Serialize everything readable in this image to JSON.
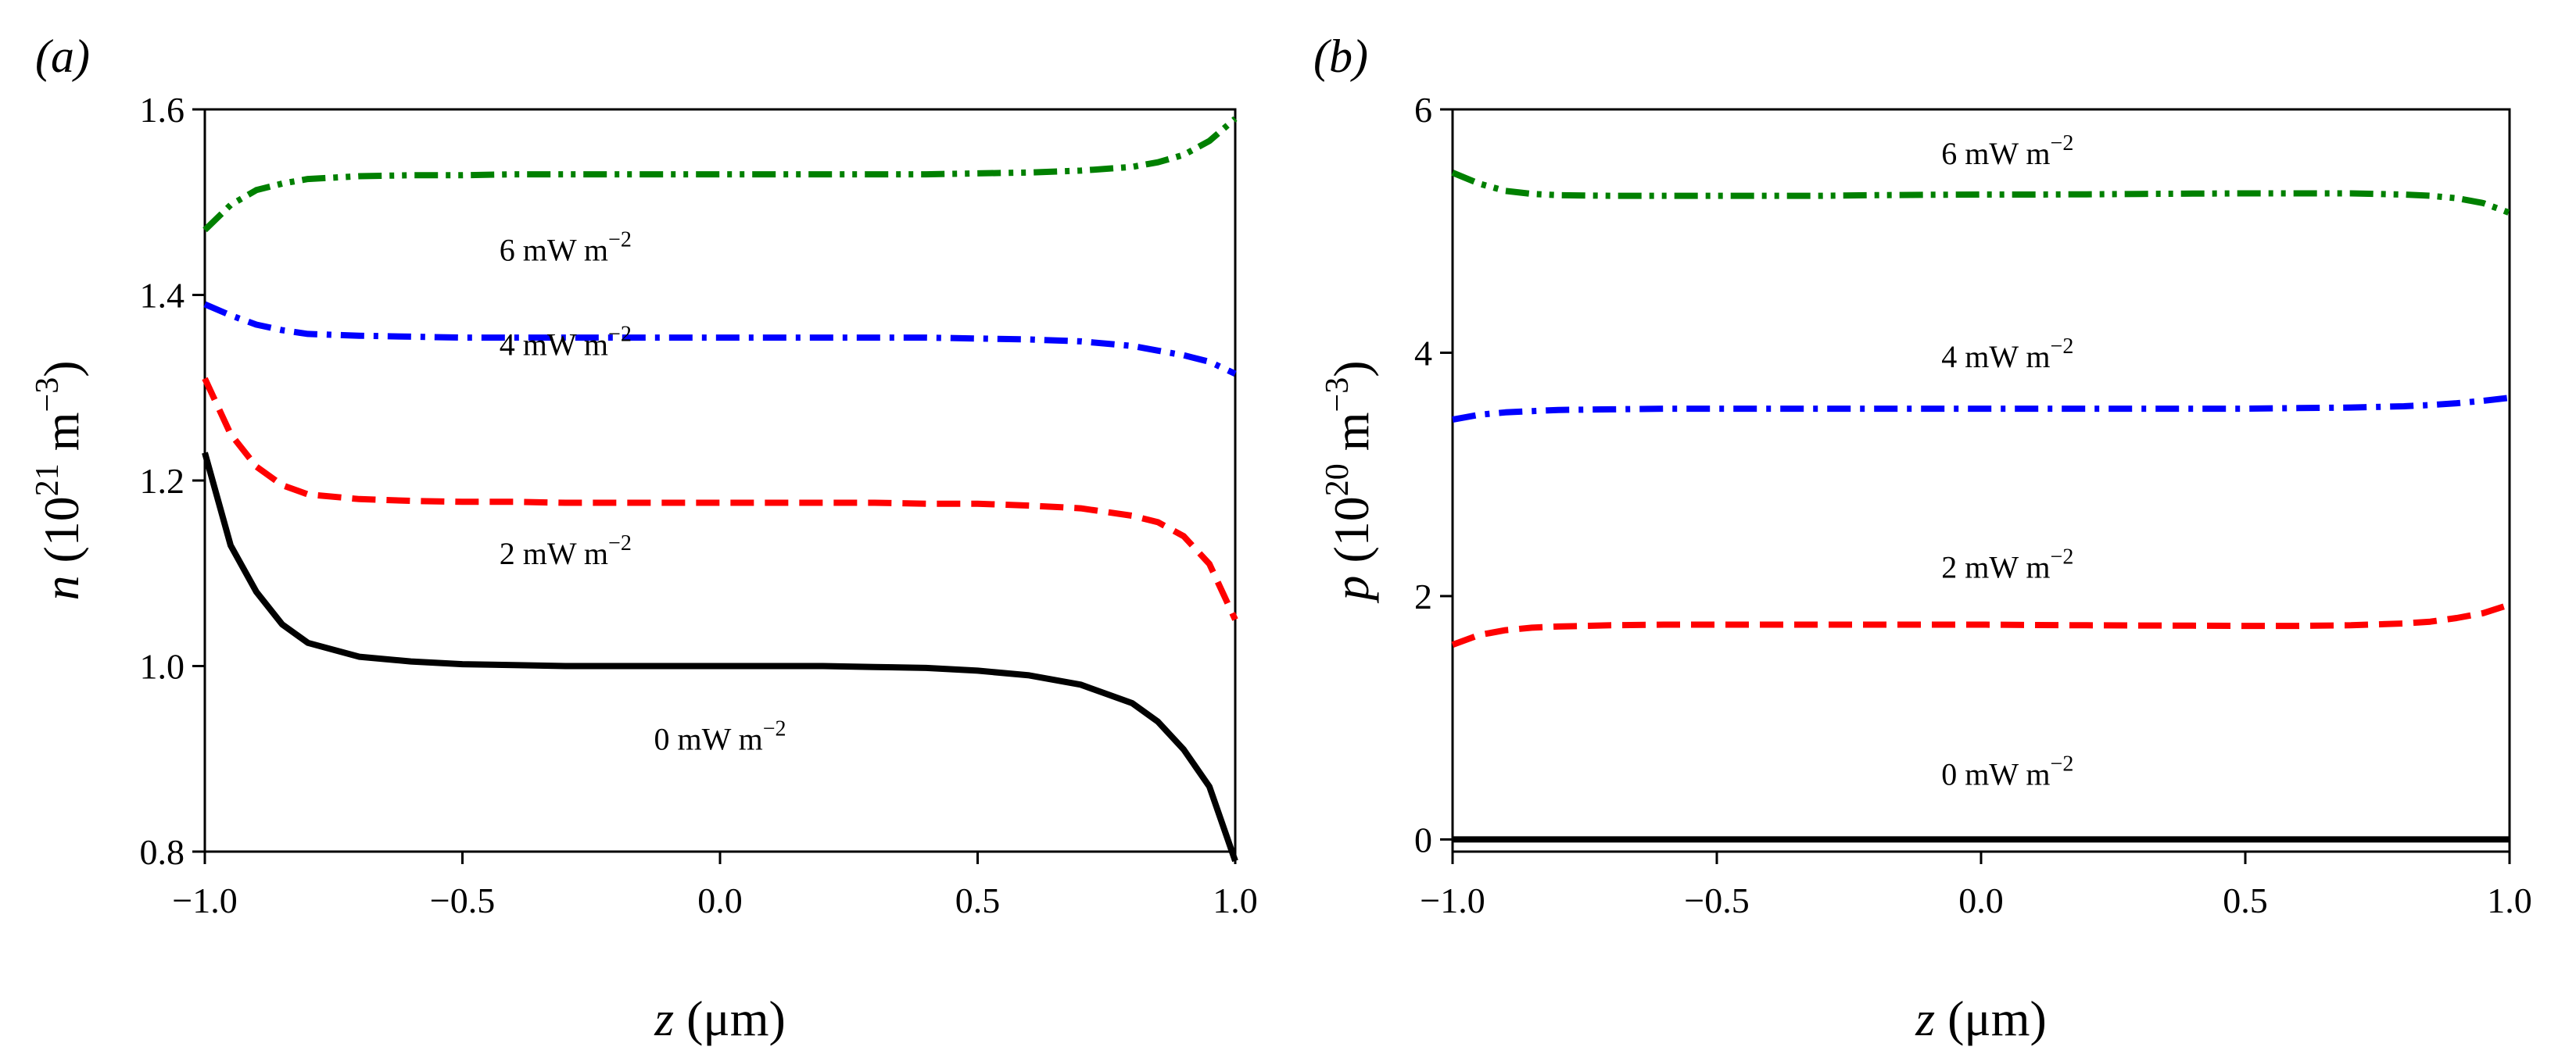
{
  "chart_data": [
    {
      "type": "line",
      "panel_label": "(a)",
      "x_axis_label": "z (μm)",
      "x_axis_label_var": "z",
      "x_axis_label_unit": " (μm)",
      "y_axis_label": "n (10^21 m^−3)",
      "y_axis_label_var": "n",
      "y_axis_label_unit": " (10",
      "y_axis_label_exp": "21",
      "y_axis_label_unit2": " m",
      "y_axis_label_exp2": "−3",
      "y_axis_label_close": ")",
      "xlim": [
        -1.0,
        1.0
      ],
      "ylim": [
        0.8,
        1.6
      ],
      "xticks": [
        -1.0,
        -0.5,
        0.0,
        0.5,
        1.0
      ],
      "xtick_labels": [
        "−1.0",
        "−0.5",
        "0.0",
        "0.5",
        "1.0"
      ],
      "yticks": [
        0.8,
        1.0,
        1.2,
        1.4,
        1.6
      ],
      "ytick_labels": [
        "0.8",
        "1.0",
        "1.2",
        "1.4",
        "1.6"
      ],
      "x": [
        -1.0,
        -0.95,
        -0.9,
        -0.85,
        -0.8,
        -0.7,
        -0.6,
        -0.5,
        -0.4,
        -0.3,
        -0.2,
        -0.1,
        0.0,
        0.1,
        0.2,
        0.3,
        0.4,
        0.5,
        0.6,
        0.7,
        0.8,
        0.85,
        0.9,
        0.95,
        1.0
      ],
      "series": [
        {
          "name": "0 mW m−2",
          "label_base": "0 mW m",
          "label_exp": "−2",
          "color": "#000000",
          "dash": "solid",
          "values": [
            1.23,
            1.13,
            1.08,
            1.045,
            1.025,
            1.01,
            1.005,
            1.002,
            1.001,
            1.0,
            1.0,
            1.0,
            1.0,
            1.0,
            1.0,
            0.999,
            0.998,
            0.995,
            0.99,
            0.98,
            0.96,
            0.94,
            0.91,
            0.87,
            0.79
          ],
          "label_at": [
            0.0,
            0.91
          ]
        },
        {
          "name": "2 mW m−2",
          "label_base": "2 mW m",
          "label_exp": "−2",
          "color": "#ff0000",
          "dash": "dashed",
          "values": [
            1.31,
            1.25,
            1.215,
            1.195,
            1.185,
            1.18,
            1.178,
            1.177,
            1.177,
            1.176,
            1.176,
            1.176,
            1.176,
            1.176,
            1.176,
            1.176,
            1.175,
            1.175,
            1.173,
            1.17,
            1.162,
            1.155,
            1.14,
            1.11,
            1.05
          ],
          "label_at": [
            -0.3,
            1.11
          ]
        },
        {
          "name": "4 mW m−2",
          "label_base": "4 mW m",
          "label_exp": "−2",
          "color": "#0000ff",
          "dash": "dashdot",
          "values": [
            1.39,
            1.378,
            1.368,
            1.362,
            1.358,
            1.356,
            1.355,
            1.354,
            1.354,
            1.354,
            1.354,
            1.354,
            1.354,
            1.354,
            1.354,
            1.354,
            1.354,
            1.353,
            1.352,
            1.35,
            1.345,
            1.34,
            1.335,
            1.328,
            1.315
          ],
          "label_at": [
            -0.3,
            1.335
          ]
        },
        {
          "name": "6 mW m−2",
          "label_base": "6 mW m",
          "label_exp": "−2",
          "color": "#008000",
          "dash": "dashdotdot",
          "values": [
            1.47,
            1.497,
            1.513,
            1.52,
            1.525,
            1.528,
            1.529,
            1.529,
            1.53,
            1.53,
            1.53,
            1.53,
            1.53,
            1.53,
            1.53,
            1.53,
            1.53,
            1.531,
            1.532,
            1.534,
            1.538,
            1.543,
            1.551,
            1.566,
            1.59
          ],
          "label_at": [
            -0.3,
            1.437
          ]
        }
      ]
    },
    {
      "type": "line",
      "panel_label": "(b)",
      "x_axis_label": "z (μm)",
      "x_axis_label_var": "z",
      "x_axis_label_unit": " (μm)",
      "y_axis_label": "p (10^20 m^−3)",
      "y_axis_label_var": "p",
      "y_axis_label_unit": " (10",
      "y_axis_label_exp": "20",
      "y_axis_label_unit2": " m",
      "y_axis_label_exp2": "−3",
      "y_axis_label_close": ")",
      "xlim": [
        -1.0,
        1.0
      ],
      "ylim": [
        -0.1,
        6.0
      ],
      "xticks": [
        -1.0,
        -0.5,
        0.0,
        0.5,
        1.0
      ],
      "xtick_labels": [
        "−1.0",
        "−0.5",
        "0.0",
        "0.5",
        "1.0"
      ],
      "yticks": [
        0,
        2,
        4,
        6
      ],
      "ytick_labels": [
        "0",
        "2",
        "4",
        "6"
      ],
      "x": [
        -1.0,
        -0.95,
        -0.9,
        -0.85,
        -0.8,
        -0.7,
        -0.6,
        -0.5,
        -0.4,
        -0.3,
        -0.2,
        -0.1,
        0.0,
        0.1,
        0.2,
        0.3,
        0.4,
        0.5,
        0.6,
        0.7,
        0.8,
        0.85,
        0.9,
        0.95,
        1.0
      ],
      "series": [
        {
          "name": "0 mW m−2",
          "label_base": "0 mW m",
          "label_exp": "−2",
          "color": "#000000",
          "dash": "solid",
          "values": [
            0,
            0,
            0,
            0,
            0,
            0,
            0,
            0,
            0,
            0,
            0,
            0,
            0,
            0,
            0,
            0,
            0,
            0,
            0,
            0,
            0,
            0,
            0,
            0,
            0
          ],
          "label_at": [
            0.05,
            0.45
          ]
        },
        {
          "name": "2 mW m−2",
          "label_base": "2 mW m",
          "label_exp": "−2",
          "color": "#ff0000",
          "dash": "dashed",
          "values": [
            1.6,
            1.68,
            1.72,
            1.74,
            1.75,
            1.76,
            1.765,
            1.765,
            1.765,
            1.765,
            1.765,
            1.765,
            1.765,
            1.762,
            1.76,
            1.758,
            1.757,
            1.755,
            1.755,
            1.76,
            1.775,
            1.79,
            1.82,
            1.86,
            1.93
          ],
          "label_at": [
            0.05,
            2.15
          ]
        },
        {
          "name": "4 mW m−2",
          "label_base": "4 mW m",
          "label_exp": "−2",
          "color": "#0000ff",
          "dash": "dashdot",
          "values": [
            3.45,
            3.49,
            3.51,
            3.52,
            3.53,
            3.535,
            3.54,
            3.54,
            3.54,
            3.54,
            3.54,
            3.54,
            3.54,
            3.54,
            3.54,
            3.54,
            3.54,
            3.54,
            3.545,
            3.55,
            3.56,
            3.57,
            3.585,
            3.605,
            3.63
          ],
          "label_at": [
            0.05,
            3.88
          ]
        },
        {
          "name": "6 mW m−2",
          "label_base": "6 mW m",
          "label_exp": "−2",
          "color": "#008000",
          "dash": "dashdotdot",
          "values": [
            5.48,
            5.39,
            5.33,
            5.305,
            5.295,
            5.29,
            5.29,
            5.29,
            5.29,
            5.29,
            5.295,
            5.298,
            5.3,
            5.3,
            5.302,
            5.305,
            5.308,
            5.31,
            5.31,
            5.31,
            5.3,
            5.29,
            5.27,
            5.23,
            5.15
          ],
          "label_at": [
            0.05,
            5.55
          ]
        }
      ]
    }
  ]
}
